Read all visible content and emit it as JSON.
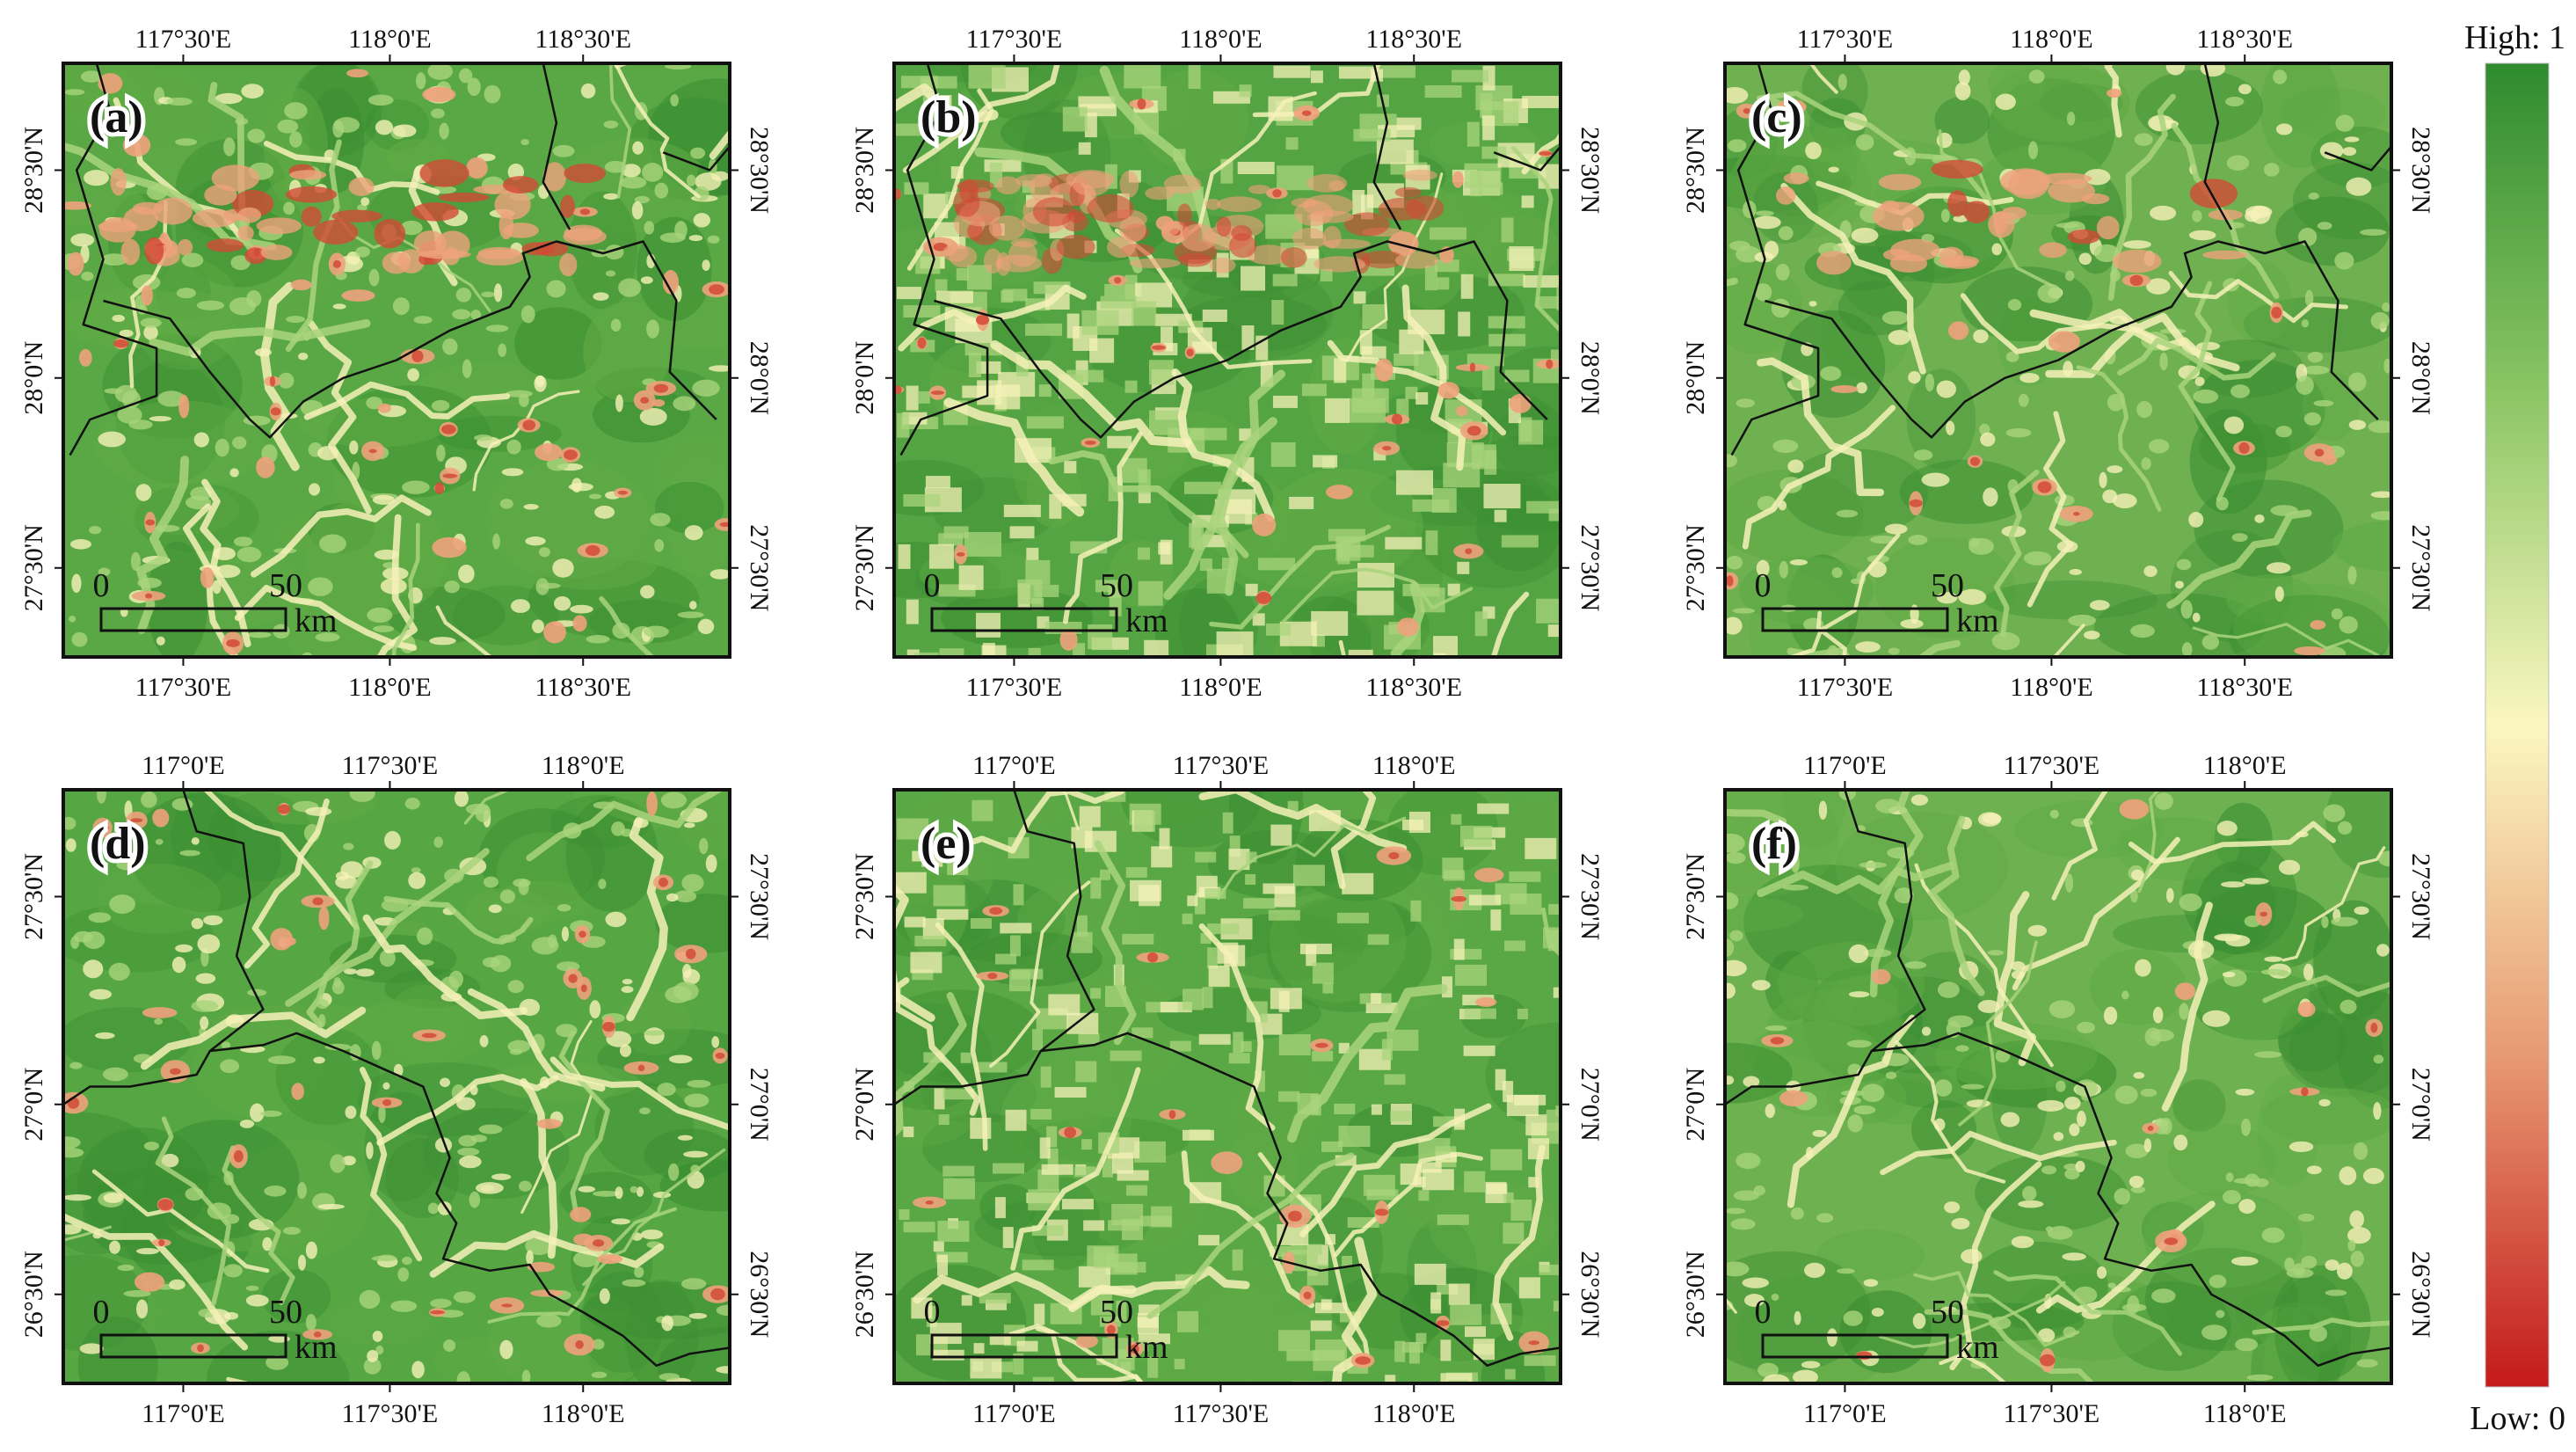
{
  "panels": [
    {
      "label": "(a)",
      "lon_ticks": [
        "117°30'E",
        "118°0'E",
        "118°30'E"
      ],
      "lat_ticks": [
        "28°30'N",
        "28°0'N",
        "27°30'N"
      ],
      "scale": {
        "zero": "0",
        "max": "50",
        "unit": "km"
      }
    },
    {
      "label": "(b)",
      "lon_ticks": [
        "117°30'E",
        "118°0'E",
        "118°30'E"
      ],
      "lat_ticks": [
        "28°30'N",
        "28°0'N",
        "27°30'N"
      ],
      "scale": {
        "zero": "0",
        "max": "50",
        "unit": "km"
      }
    },
    {
      "label": "(c)",
      "lon_ticks": [
        "117°30'E",
        "118°0'E",
        "118°30'E"
      ],
      "lat_ticks": [
        "28°30'N",
        "28°0'N",
        "27°30'N"
      ],
      "scale": {
        "zero": "0",
        "max": "50",
        "unit": "km"
      }
    },
    {
      "label": "(d)",
      "lon_ticks": [
        "117°0'E",
        "117°30'E",
        "118°0'E"
      ],
      "lat_ticks": [
        "27°30'N",
        "27°0'N",
        "26°30'N"
      ],
      "scale": {
        "zero": "0",
        "max": "50",
        "unit": "km"
      }
    },
    {
      "label": "(e)",
      "lon_ticks": [
        "117°0'E",
        "117°30'E",
        "118°0'E"
      ],
      "lat_ticks": [
        "27°30'N",
        "27°0'N",
        "26°30'N"
      ],
      "scale": {
        "zero": "0",
        "max": "50",
        "unit": "km"
      }
    },
    {
      "label": "(f)",
      "lon_ticks": [
        "117°0'E",
        "117°30'E",
        "118°0'E"
      ],
      "lat_ticks": [
        "27°30'N",
        "27°0'N",
        "26°30'N"
      ],
      "scale": {
        "zero": "0",
        "max": "50",
        "unit": "km"
      }
    }
  ],
  "legend": {
    "high_label": "High: 1",
    "low_label": "Low: 0",
    "colors": [
      "#2e8b2e",
      "#8cc665",
      "#fbf7c0",
      "#e79a73",
      "#c41a1a"
    ]
  },
  "colors": {
    "green_dark": "#3c8f32",
    "green": "#5faa45",
    "green_light": "#a9d47c",
    "yellow": "#f6f1b8",
    "orange": "#eea27c",
    "red": "#d24a36",
    "frame": "#111111"
  }
}
